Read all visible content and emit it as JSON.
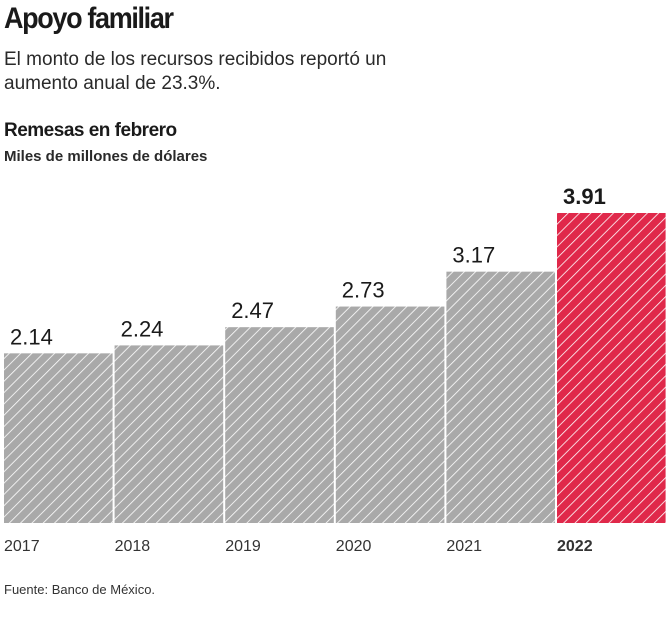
{
  "header": {
    "title": "Apoyo familiar",
    "subtitle": "El monto de los recursos recibidos reportó un aumento anual de 23.3%."
  },
  "chart_data": {
    "type": "bar",
    "title": "Remesas en febrero",
    "ylabel": "Miles de millones de dólares",
    "categories": [
      "2017",
      "2018",
      "2019",
      "2020",
      "2021",
      "2022"
    ],
    "values": [
      2.14,
      2.24,
      2.47,
      2.73,
      3.17,
      3.91
    ],
    "value_labels": [
      "2.14",
      "2.24",
      "2.47",
      "2.73",
      "3.17",
      "3.91"
    ],
    "ylim": [
      0,
      3.91
    ],
    "grid": false,
    "highlight_index": 5,
    "colors": {
      "default": "#a9a9a9",
      "highlight": "#e0284a"
    }
  },
  "footer": {
    "source": "Fuente: Banco de México."
  }
}
